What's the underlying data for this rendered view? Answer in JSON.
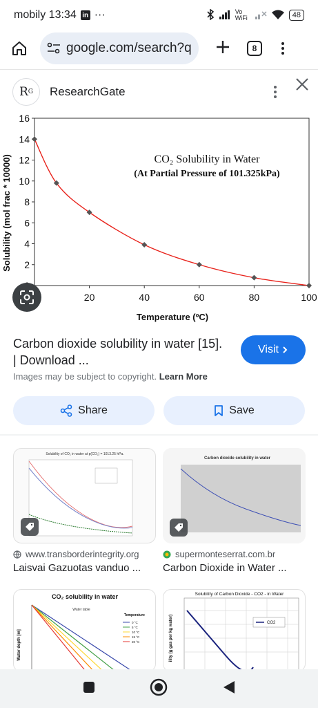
{
  "status_bar": {
    "carrier_time": "mobily 13:34",
    "linkedin_badge": "in",
    "more_notifications": "···",
    "wifi_label": "Vo WiFi",
    "battery": "48"
  },
  "browser": {
    "url": "google.com/search?q",
    "tab_count": "8"
  },
  "source": {
    "logo_text": "R",
    "logo_sup": "G",
    "name": "ResearchGate"
  },
  "chart_data": {
    "type": "line",
    "title": "CO₂ Solubility in Water",
    "subtitle": "(At Partial Pressure of 101.325kPa)",
    "xlabel": "Temperature (ºC)",
    "ylabel": "Solubility (mol frac * 10000)",
    "xlim": [
      0,
      100
    ],
    "ylim": [
      0,
      16
    ],
    "x_ticks": [
      "20",
      "40",
      "60",
      "80",
      "100"
    ],
    "y_ticks": [
      "0",
      "2",
      "4",
      "6",
      "8",
      "10",
      "12",
      "14",
      "16"
    ],
    "x": [
      0,
      8,
      20,
      40,
      60,
      80,
      100
    ],
    "y": [
      14,
      9.8,
      7.0,
      3.9,
      2.0,
      0.75,
      0
    ],
    "line_color": "#e8231c",
    "marker_color": "#555555",
    "grid": false
  },
  "result": {
    "title": "Carbon dioxide solubility in water [15]. | Download ...",
    "visit_label": "Visit",
    "copyright": "Images may be subject to copyright.",
    "learn_more": "Learn More",
    "share_label": "Share",
    "save_label": "Save"
  },
  "related": [
    {
      "site": "www.transborderintegrity.org",
      "title": "Laisvai Gazuotas vanduo ...",
      "thumb_title": "Solubility of CO₂ in water at p(CO₂) = 1013.25 hPa."
    },
    {
      "site": "supermonteserrat.com.br",
      "title": "Carbon Dioxide in Water ...",
      "thumb_title": "Carbon dioxide solubility in water"
    },
    {
      "thumb_title": "CO₂ solubility in water",
      "thumb_note": "Water table",
      "legend_title": "Temperature",
      "legend": [
        "0 °C",
        "5 °C",
        "10 °C",
        "15 °C",
        "20 °C"
      ],
      "ylabel": "Water depth [m]"
    },
    {
      "thumb_title": "Solubility of Carbon Dioxide - CO2 - in Water",
      "legend": [
        "CO2"
      ],
      "ylabel": "ility (g gas per kg water)"
    }
  ],
  "colors": {
    "accent": "#1a73e8",
    "chip": "#e8f0fe",
    "url_pill": "#e9eef6"
  }
}
